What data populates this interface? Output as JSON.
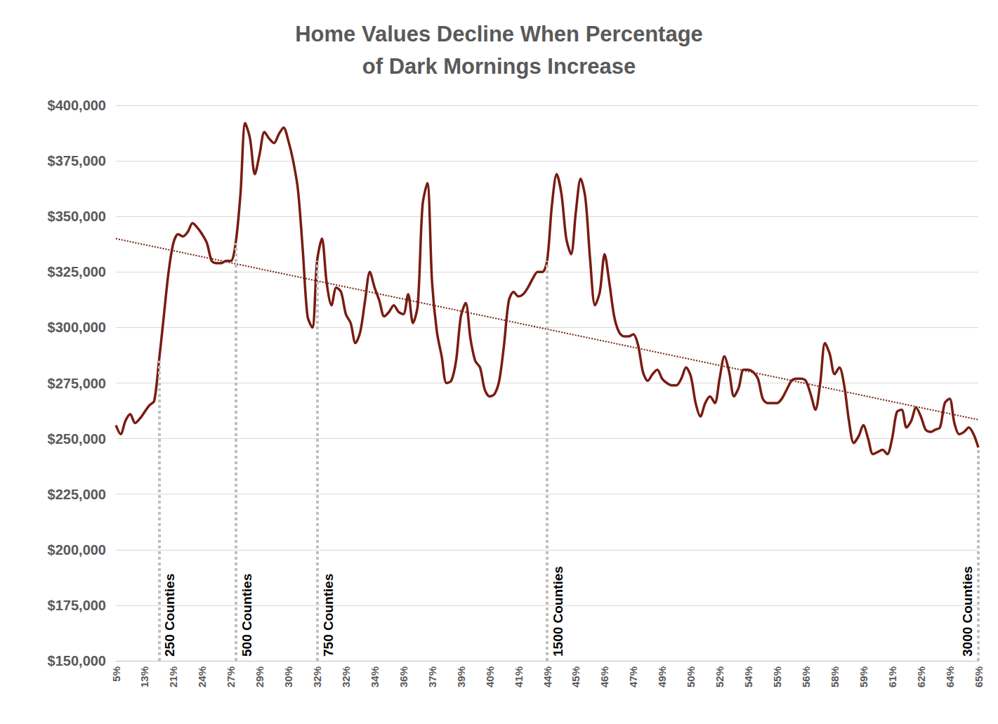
{
  "chart_data": {
    "type": "line",
    "title": "Home Values Decline When Percentage\nof Dark Mornings Increase",
    "categories": [
      "5%",
      null,
      null,
      null,
      null,
      null,
      "13%",
      null,
      null,
      null,
      null,
      null,
      "21%",
      null,
      null,
      null,
      null,
      null,
      "24%",
      null,
      null,
      null,
      null,
      null,
      "27%",
      null,
      null,
      null,
      null,
      null,
      "29%",
      null,
      null,
      null,
      null,
      null,
      "30%",
      null,
      null,
      null,
      null,
      null,
      "32%",
      null,
      null,
      null,
      null,
      null,
      "32%",
      null,
      null,
      null,
      null,
      null,
      "34%",
      null,
      null,
      null,
      null,
      null,
      "36%",
      null,
      null,
      null,
      null,
      null,
      "37%",
      null,
      null,
      null,
      null,
      null,
      "39%",
      null,
      null,
      null,
      null,
      null,
      "40%",
      null,
      null,
      null,
      null,
      null,
      "41%",
      null,
      null,
      null,
      null,
      null,
      "44%",
      null,
      null,
      null,
      null,
      null,
      "45%",
      null,
      null,
      null,
      null,
      null,
      "46%",
      null,
      null,
      null,
      null,
      null,
      "47%",
      null,
      null,
      null,
      null,
      null,
      "49%",
      null,
      null,
      null,
      null,
      null,
      "50%",
      null,
      null,
      null,
      null,
      null,
      "52%",
      null,
      null,
      null,
      null,
      null,
      "54%",
      null,
      null,
      null,
      null,
      null,
      "55%",
      null,
      null,
      null,
      null,
      null,
      "56%",
      null,
      null,
      null,
      null,
      null,
      "58%",
      null,
      null,
      null,
      null,
      null,
      "59%",
      null,
      null,
      null,
      null,
      null,
      "61%",
      null,
      null,
      null,
      null,
      null,
      "62%",
      null,
      null,
      null,
      null,
      null,
      "64%",
      null,
      null,
      null,
      null,
      null,
      "65%"
    ],
    "values": [
      256000,
      252000,
      258000,
      261000,
      257000,
      259000,
      262000,
      265000,
      267000,
      285000,
      305000,
      325000,
      338000,
      342000,
      341000,
      343000,
      347000,
      345000,
      342000,
      338000,
      330000,
      329000,
      329000,
      330000,
      330000,
      338000,
      360000,
      392000,
      385000,
      369000,
      378000,
      388000,
      385000,
      383000,
      387000,
      390000,
      384000,
      375000,
      362000,
      335000,
      305000,
      300000,
      330000,
      340000,
      320000,
      310000,
      318000,
      316000,
      306000,
      302000,
      293000,
      298000,
      312000,
      325000,
      318000,
      312000,
      305000,
      307000,
      310000,
      307000,
      306000,
      315000,
      302000,
      310000,
      355000,
      365000,
      320000,
      298000,
      287000,
      275000,
      276000,
      285000,
      305000,
      311000,
      295000,
      285000,
      282000,
      272000,
      269000,
      270000,
      276000,
      292000,
      312000,
      316000,
      314000,
      315000,
      318000,
      322000,
      325000,
      325000,
      330000,
      355000,
      369000,
      360000,
      340000,
      333000,
      352000,
      367000,
      358000,
      330000,
      310000,
      316000,
      333000,
      320000,
      305000,
      298000,
      296000,
      296000,
      297000,
      292000,
      280000,
      276000,
      279000,
      281000,
      277000,
      275000,
      274000,
      274000,
      277000,
      282000,
      278000,
      266000,
      260000,
      266000,
      269000,
      266000,
      277000,
      287000,
      280000,
      269000,
      273000,
      281000,
      281000,
      280000,
      277000,
      268000,
      266000,
      266000,
      266000,
      268000,
      272000,
      276000,
      277000,
      277000,
      276000,
      270000,
      263000,
      275000,
      293000,
      288000,
      279000,
      282000,
      274000,
      258000,
      248000,
      251000,
      256000,
      250000,
      243000,
      244000,
      245000,
      243000,
      250000,
      262000,
      263000,
      255000,
      258000,
      264000,
      260000,
      254000,
      253000,
      254000,
      255000,
      266000,
      268000,
      257000,
      252000,
      253000,
      255000,
      252000,
      246000
    ],
    "color": "#781c12",
    "ylim": [
      150000,
      400000
    ],
    "yticks": [
      {
        "value": 150000,
        "label": "$150,000"
      },
      {
        "value": 175000,
        "label": "$175,000"
      },
      {
        "value": 200000,
        "label": "$200,000"
      },
      {
        "value": 225000,
        "label": "$225,000"
      },
      {
        "value": 250000,
        "label": "$250,000"
      },
      {
        "value": 275000,
        "label": "$275,000"
      },
      {
        "value": 300000,
        "label": "$300,000"
      },
      {
        "value": 325000,
        "label": "$325,000"
      },
      {
        "value": 350000,
        "label": "$350,000"
      },
      {
        "value": 375000,
        "label": "$375,000"
      },
      {
        "value": 400000,
        "label": "$400,000"
      }
    ],
    "grid": true,
    "annotations": [
      {
        "text": "250 Counties",
        "index": 9
      },
      {
        "text": "500 Counties",
        "index": 25
      },
      {
        "text": "750 Counties",
        "index": 42
      },
      {
        "text": "1500 Counties",
        "index": 90
      },
      {
        "text": "3000 Counties",
        "index": 180
      }
    ],
    "trend": {
      "start": 340000,
      "end": 258500,
      "color": "#781c12",
      "line_style": "dotted"
    }
  }
}
